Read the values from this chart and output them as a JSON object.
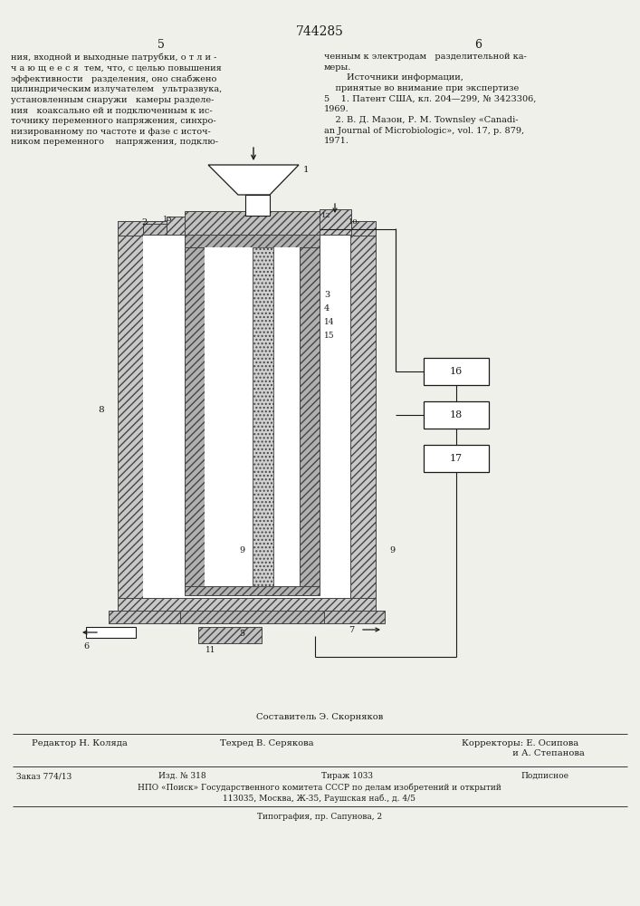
{
  "title": "744285",
  "page_left": "5",
  "page_right": "6",
  "bg_color": "#f0f0eb",
  "text_color": "#1a1a1a",
  "left_text": "ния, входной и выходные патрубки, о т л и -\nч а ю щ е е с я  тем, что, с целью повышения\nэффективности   разделения, оно снабжено\nцилиндрическим излучателем   ультразвука,\nустановленным снаружи   камеры разделе-\nния   коаксально ей и подключенным к ис-\nточнику переменного напряжения, синхро-\nнизированному по частоте и фазе с источ-\nником переменного    напряжения, подклю-",
  "right_text": "ченным к электродам   разделительной ка-\nмеры.\n        Источники информации,\n    принятые во внимание при экспертизе\n5    1. Патент США, кл. 204—299, № 3423306,\n1969.\n    2. В. Д. Мазон, Р. М. Townsley «Canadi-\nan Journal of Microbiologic», vol. 17, p. 879,\n1971.",
  "footer_composer": "Составитель Э. Скорняков",
  "footer_editor": "Редактор Н. Коляда",
  "footer_techred": "Техред В. Серякова",
  "footer_correctors": "Корректоры: Е. Осипова\n                  и А. Степанова",
  "footer_order": "Заказ 774/13",
  "footer_edition": "Изд. № 318",
  "footer_tirage": "Тираж 1033",
  "footer_podpisnoe": "Подписное",
  "footer_npo": "НПО «Поиск» Государственного комитета СССР по делам изобретений и открытий",
  "footer_address": "113035, Москва, Ж-35, Раушская наб., д. 4/5",
  "footer_typography": "Типография, пр. Сапунова, 2"
}
